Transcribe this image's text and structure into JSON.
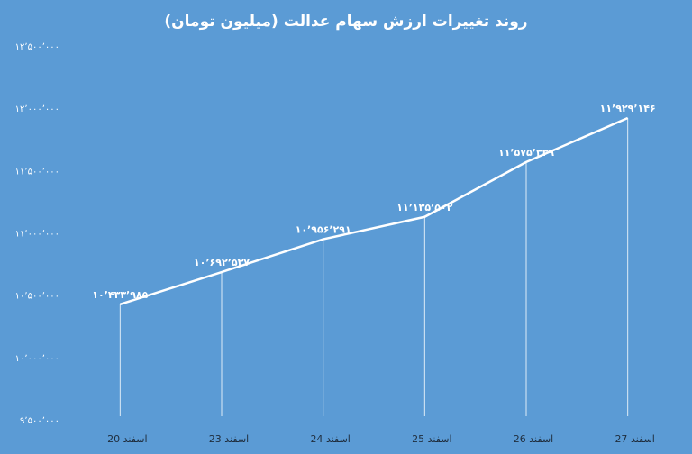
{
  "chart_data": {
    "type": "line",
    "title": "روند تغییرات ارزش سهام عدالت (میلیون تومان)",
    "categories": [
      "20 اسفند",
      "23 اسفند",
      "24 اسفند",
      "25 اسفند",
      "26 اسفند",
      "27 اسفند"
    ],
    "values": [
      10433985,
      10692537,
      10956291,
      11135502,
      11575339,
      11929146
    ],
    "value_labels": [
      "۱۰٬۴۳۳٬۹۸۵",
      "۱۰٬۶۹۲٬۵۳۷",
      "۱۰٬۹۵۶٬۲۹۱",
      "۱۱٬۱۳۵٬۵۰۲",
      "۱۱٬۵۷۵٬۳۳۹",
      "۱۱٬۹۲۹٬۱۴۶"
    ],
    "color": "#ffffff",
    "drop_lines": true,
    "grid": false,
    "ylim": [
      9500000,
      12500000
    ],
    "yticks": [
      {
        "value": 9500000,
        "label": "۹٬۵۰۰٬۰۰۰"
      },
      {
        "value": 10000000,
        "label": "۱۰٬۰۰۰٬۰۰۰"
      },
      {
        "value": 10500000,
        "label": "۱۰٬۵۰۰٬۰۰۰"
      },
      {
        "value": 11000000,
        "label": "۱۱٬۰۰۰٬۰۰۰"
      },
      {
        "value": 11500000,
        "label": "۱۱٬۵۰۰٬۰۰۰"
      },
      {
        "value": 12000000,
        "label": "۱۲٬۰۰۰٬۰۰۰"
      },
      {
        "value": 12500000,
        "label": "۱۲٬۵۰۰٬۰۰۰"
      }
    ]
  }
}
